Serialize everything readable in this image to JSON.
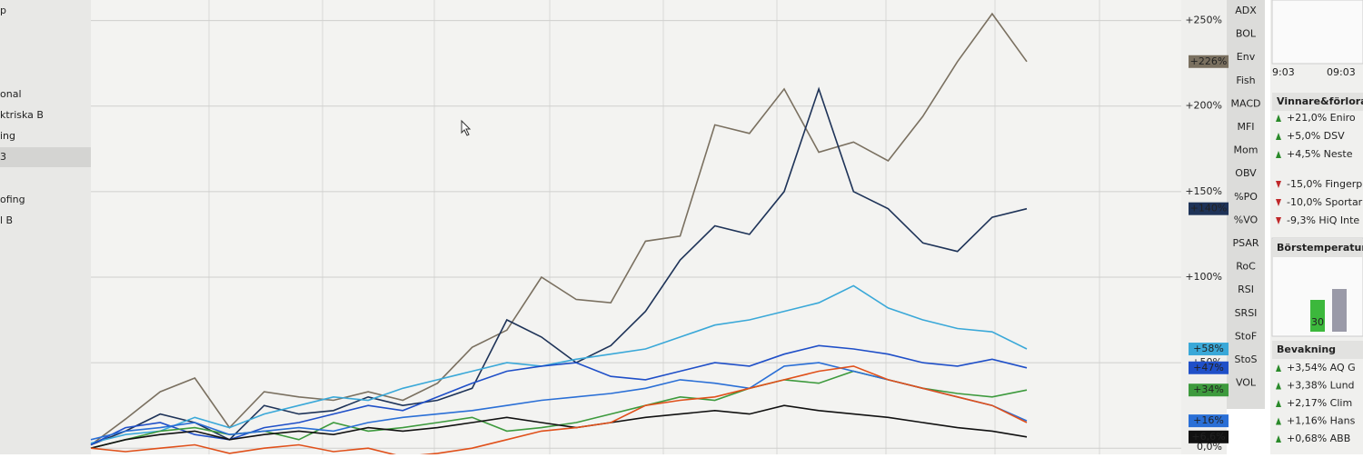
{
  "sidebar": {
    "items": [
      "p",
      "onal",
      "ktriska B",
      "ing",
      "3",
      "ofing",
      "l B"
    ]
  },
  "indicators": [
    "ADX",
    "BOL",
    "Env",
    "Fish",
    "MACD",
    "MFI",
    "Mom",
    "OBV",
    "%PO",
    "%VO",
    "PSAR",
    "RoC",
    "RSI",
    "SRSI",
    "StoF",
    "StoS",
    "VOL"
  ],
  "panel": {
    "times": [
      "9:03",
      "09:03"
    ],
    "movers": {
      "title": "Vinnare&förlorar",
      "gainers": [
        "+21,0%  Eniro",
        "+5,0%  DSV",
        "+4,5%  Neste"
      ],
      "losers": [
        "-15,0%  Fingerp",
        "-10,0%  Sportar",
        "-9,3%  HiQ Inte"
      ]
    },
    "temperature": {
      "title": "Börstemperatur",
      "label": "30"
    },
    "watch": {
      "title": "Bevakning",
      "items": [
        "+3,54%  AQ G",
        "+3,38%  Lund",
        "+2,17%  Clim",
        "+1,16%  Hans",
        "+0,68%  ABB"
      ]
    }
  },
  "chart_data": {
    "type": "line",
    "ylim": [
      -2,
      262
    ],
    "yticks": [
      {
        "value": 0,
        "label": "0,0%"
      },
      {
        "value": 50,
        "label": "+50%"
      },
      {
        "value": 100,
        "label": "+100%"
      },
      {
        "value": 150,
        "label": "+150%"
      },
      {
        "value": 200,
        "label": "+200%"
      },
      {
        "value": 250,
        "label": "+250%"
      }
    ],
    "grid": true,
    "series": [
      {
        "color": "#7a7060",
        "label": "+226%",
        "values": [
          2,
          17,
          33,
          41,
          12,
          33,
          30,
          28,
          33,
          28,
          38,
          59,
          69,
          100,
          87,
          85,
          121,
          124,
          189,
          184,
          210,
          173,
          179,
          168,
          194,
          226,
          254,
          226
        ]
      },
      {
        "color": "#1e3358",
        "label": "+140%",
        "values": [
          2,
          10,
          20,
          15,
          5,
          25,
          20,
          22,
          30,
          25,
          28,
          35,
          75,
          65,
          50,
          60,
          80,
          110,
          130,
          125,
          150,
          210,
          150,
          140,
          120,
          115,
          135,
          140
        ]
      },
      {
        "color": "#3aa8d8",
        "label": "+58%",
        "values": [
          3,
          8,
          10,
          18,
          12,
          20,
          25,
          30,
          28,
          35,
          40,
          45,
          50,
          48,
          52,
          55,
          58,
          65,
          72,
          75,
          80,
          85,
          95,
          82,
          75,
          70,
          68,
          58
        ]
      },
      {
        "color": "#1f4fc8",
        "label": "+47%",
        "values": [
          2,
          12,
          15,
          8,
          5,
          12,
          15,
          20,
          25,
          22,
          30,
          38,
          45,
          48,
          50,
          42,
          40,
          45,
          50,
          48,
          55,
          60,
          58,
          55,
          50,
          48,
          52,
          47
        ]
      },
      {
        "color": "#3d9a3d",
        "label": "+34%",
        "values": [
          0,
          5,
          10,
          12,
          8,
          10,
          5,
          15,
          10,
          12,
          15,
          18,
          10,
          12,
          15,
          20,
          25,
          30,
          28,
          35,
          40,
          38,
          45,
          40,
          35,
          32,
          30,
          34
        ]
      },
      {
        "color": "#2a6fd6",
        "label": "+16%",
        "values": [
          5,
          10,
          12,
          15,
          8,
          10,
          12,
          10,
          15,
          18,
          20,
          22,
          25,
          28,
          30,
          32,
          35,
          40,
          38,
          35,
          48,
          50,
          45,
          40,
          35,
          30,
          25,
          16
        ]
      },
      {
        "color": "#111111",
        "label": "+6,6%",
        "values": [
          0,
          5,
          8,
          10,
          5,
          8,
          10,
          8,
          12,
          10,
          12,
          15,
          18,
          15,
          12,
          15,
          18,
          20,
          22,
          20,
          25,
          22,
          20,
          18,
          15,
          12,
          10,
          6.6
        ]
      },
      {
        "color": "#e0501a",
        "values": [
          0,
          -2,
          0,
          2,
          -3,
          0,
          2,
          -2,
          0,
          -5,
          -3,
          0,
          5,
          10,
          12,
          15,
          25,
          28,
          30,
          35,
          40,
          45,
          48,
          40,
          35,
          30,
          25,
          15
        ]
      }
    ]
  }
}
